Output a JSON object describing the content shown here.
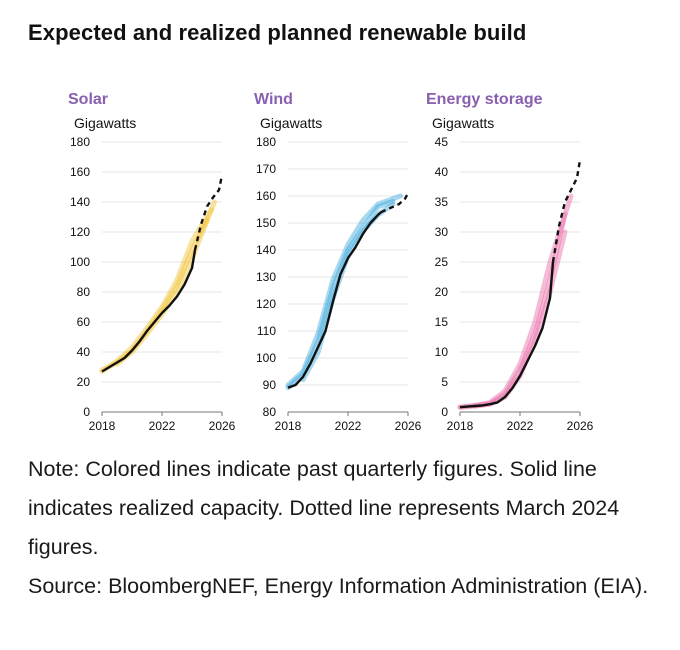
{
  "title": "Expected and realized planned renewable build",
  "note": "Note: Colored lines indicate past quarterly figures. Solid line indicates realized capacity. Dotted line represents March 2024 figures.",
  "source": "Source: BloombergNEF, Energy Information Administration (EIA).",
  "chart_data": [
    {
      "id": "solar",
      "type": "line",
      "title": "Solar",
      "ylabel": "Gigawatts",
      "color": "#f2c230",
      "ylim": [
        0,
        180
      ],
      "yticks": [
        0,
        20,
        40,
        60,
        80,
        100,
        120,
        140,
        160,
        180
      ],
      "xlim": [
        2018,
        2026
      ],
      "xticks": [
        2018,
        2022,
        2026
      ],
      "series": [
        {
          "name": "Realized capacity",
          "style": "solid",
          "x": [
            2018,
            2018.5,
            2019,
            2019.5,
            2020,
            2020.5,
            2021,
            2021.5,
            2022,
            2022.5,
            2023,
            2023.5,
            2024,
            2024.2
          ],
          "y": [
            27,
            30,
            33,
            36,
            41,
            47,
            54,
            60,
            66,
            71,
            77,
            85,
            96,
            108
          ]
        },
        {
          "name": "March 2024 figures",
          "style": "dashed",
          "x": [
            2024.2,
            2024.6,
            2025,
            2025.4,
            2025.8,
            2026
          ],
          "y": [
            108,
            125,
            137,
            143,
            148,
            158
          ]
        },
        {
          "name": "Past quarterly figures 1",
          "style": "faint",
          "x": [
            2018,
            2019,
            2020,
            2021,
            2022,
            2023,
            2024,
            2025
          ],
          "y": [
            28,
            33,
            41,
            54,
            68,
            84,
            108,
            128
          ]
        },
        {
          "name": "Past quarterly figures 2",
          "style": "faint",
          "x": [
            2018,
            2019,
            2020,
            2021,
            2022,
            2023,
            2024,
            2025.3
          ],
          "y": [
            27,
            34,
            43,
            56,
            70,
            88,
            114,
            135
          ]
        },
        {
          "name": "Past quarterly figures 3",
          "style": "faint",
          "x": [
            2019,
            2020,
            2021,
            2022,
            2023,
            2024,
            2025.5
          ],
          "y": [
            32,
            40,
            52,
            65,
            80,
            102,
            140
          ]
        }
      ]
    },
    {
      "id": "wind",
      "type": "line",
      "title": "Wind",
      "ylabel": "Gigawatts",
      "color": "#3aa8db",
      "ylim": [
        80,
        180
      ],
      "yticks": [
        80,
        90,
        100,
        110,
        120,
        130,
        140,
        150,
        160,
        170,
        180
      ],
      "xlim": [
        2018,
        2026
      ],
      "xticks": [
        2018,
        2022,
        2026
      ],
      "series": [
        {
          "name": "Realized capacity",
          "style": "solid",
          "x": [
            2018,
            2018.5,
            2019,
            2019.5,
            2020,
            2020.5,
            2021,
            2021.5,
            2022,
            2022.5,
            2023,
            2023.5,
            2024,
            2024.2
          ],
          "y": [
            89,
            90,
            93,
            98,
            104,
            110,
            121,
            131,
            137,
            141,
            146,
            150,
            153,
            154
          ]
        },
        {
          "name": "March 2024 figures",
          "style": "dashed",
          "x": [
            2024.2,
            2024.6,
            2025,
            2025.4,
            2025.8,
            2026
          ],
          "y": [
            154,
            155,
            156,
            157,
            159,
            161
          ]
        },
        {
          "name": "Past quarterly figures 1",
          "style": "faint",
          "x": [
            2018,
            2019,
            2020,
            2021,
            2022,
            2023,
            2024,
            2025
          ],
          "y": [
            89,
            94,
            106,
            126,
            140,
            148,
            156,
            158
          ]
        },
        {
          "name": "Past quarterly figures 2",
          "style": "faint",
          "x": [
            2018,
            2019,
            2020,
            2021,
            2022,
            2023,
            2024,
            2025.5
          ],
          "y": [
            90,
            95,
            109,
            129,
            142,
            151,
            157,
            160
          ]
        },
        {
          "name": "Past quarterly figures 3",
          "style": "faint",
          "x": [
            2019,
            2020,
            2021,
            2022,
            2023,
            2024,
            2025
          ],
          "y": [
            92,
            102,
            122,
            138,
            147,
            153,
            157
          ]
        }
      ]
    },
    {
      "id": "storage",
      "type": "line",
      "title": "Energy storage",
      "ylabel": "Gigawatts",
      "color": "#e86aa8",
      "ylim": [
        0,
        45
      ],
      "yticks": [
        0,
        5,
        10,
        15,
        20,
        25,
        30,
        35,
        40,
        45
      ],
      "xlim": [
        2018,
        2026
      ],
      "xticks": [
        2018,
        2022,
        2026
      ],
      "series": [
        {
          "name": "Realized capacity",
          "style": "solid",
          "x": [
            2018,
            2018.5,
            2019,
            2019.5,
            2020,
            2020.5,
            2021,
            2021.5,
            2022,
            2022.5,
            2023,
            2023.5,
            2024,
            2024.2
          ],
          "y": [
            0.8,
            0.9,
            1.0,
            1.1,
            1.3,
            1.6,
            2.5,
            4,
            6,
            8.5,
            11,
            14,
            19,
            25
          ]
        },
        {
          "name": "March 2024 figures",
          "style": "dashed",
          "x": [
            2024.2,
            2024.6,
            2025,
            2025.4,
            2025.8,
            2026
          ],
          "y": [
            25,
            31,
            35,
            37,
            39,
            42
          ]
        },
        {
          "name": "Past quarterly figures 1",
          "style": "faint",
          "x": [
            2018,
            2019,
            2020,
            2021,
            2022,
            2023,
            2024,
            2025
          ],
          "y": [
            0.8,
            1,
            1.4,
            3,
            7,
            13,
            22,
            33
          ]
        },
        {
          "name": "Past quarterly figures 2",
          "style": "faint",
          "x": [
            2018,
            2019,
            2020,
            2021,
            2022,
            2023,
            2024,
            2025.4
          ],
          "y": [
            0.8,
            1.1,
            1.6,
            3.5,
            8,
            15,
            25,
            36
          ]
        },
        {
          "name": "Past quarterly figures 3",
          "style": "faint",
          "x": [
            2019,
            2020,
            2021,
            2022,
            2023,
            2024,
            2025
          ],
          "y": [
            1,
            1.3,
            2.5,
            6,
            12,
            20,
            30
          ]
        }
      ]
    }
  ]
}
